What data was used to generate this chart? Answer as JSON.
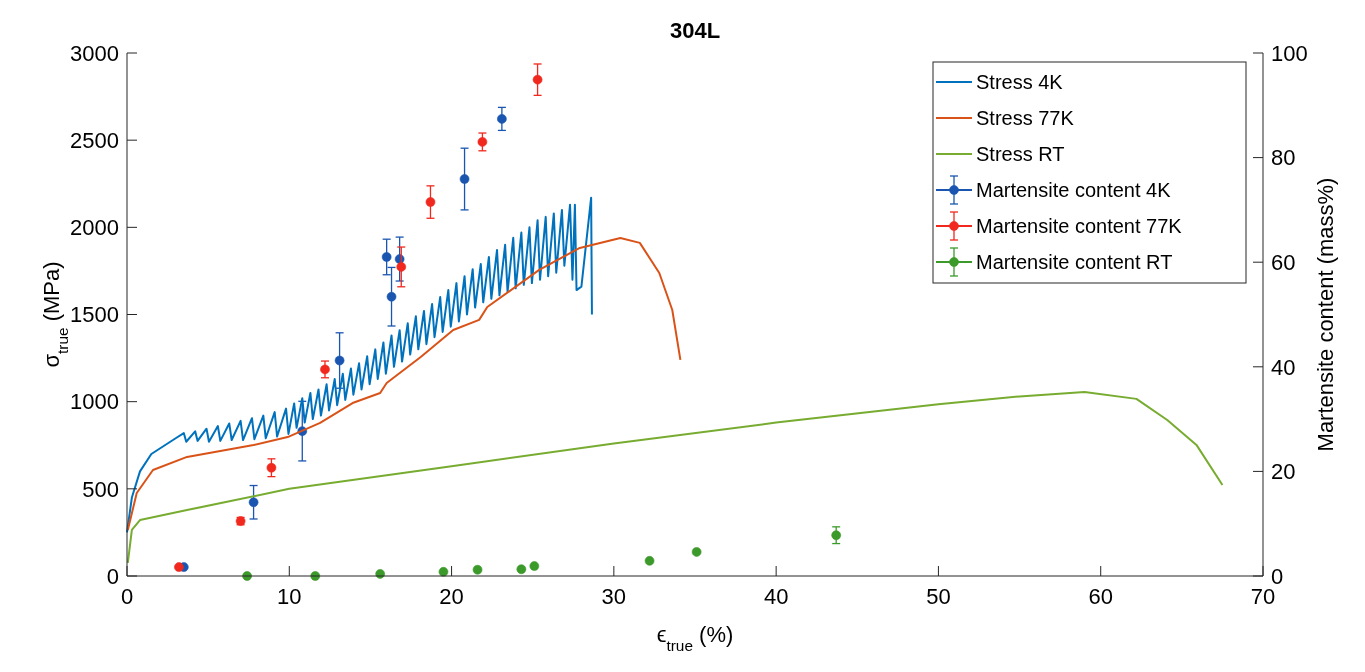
{
  "chart_data": {
    "type": "line",
    "title": "304L",
    "xlabel": "ϵ$_{true}$ (%)",
    "ylabel": "σ$_{true}$ (MPa)",
    "y2label": "Martensite content (mass%)",
    "xlim": [
      0,
      70
    ],
    "xticks": [
      0,
      10,
      20,
      30,
      40,
      50,
      60,
      70
    ],
    "ylim": [
      0,
      3000
    ],
    "yticks": [
      0,
      500,
      1000,
      1500,
      2000,
      2500,
      3000
    ],
    "y2lim": [
      0,
      100
    ],
    "y2ticks": [
      0,
      20,
      40,
      60,
      80,
      100
    ],
    "grid": false,
    "legend": "top right",
    "series": [
      {
        "name": "Stress 4K",
        "color": "#0072bd",
        "x": [
          0,
          0.3,
          0.8,
          1.5,
          2.5,
          3.0,
          3.5,
          3.65,
          4.2,
          4.35,
          4.9,
          5.05,
          5.6,
          5.75,
          6.3,
          6.45,
          7.0,
          7.15,
          7.7,
          7.85,
          8.4,
          8.55,
          9.1,
          9.25,
          9.8,
          9.95,
          10.3,
          10.45,
          10.8,
          10.95,
          11.3,
          11.45,
          11.8,
          11.95,
          12.3,
          12.45,
          12.8,
          12.95,
          13.3,
          13.45,
          13.8,
          13.95,
          14.3,
          14.45,
          14.8,
          14.95,
          15.3,
          15.45,
          15.8,
          15.95,
          16.3,
          16.45,
          16.8,
          16.95,
          17.3,
          17.45,
          17.8,
          17.95,
          18.3,
          18.45,
          18.8,
          18.95,
          19.3,
          19.45,
          19.8,
          19.95,
          20.3,
          20.45,
          20.8,
          20.95,
          21.3,
          21.45,
          21.8,
          21.95,
          22.3,
          22.45,
          22.8,
          22.95,
          23.3,
          23.45,
          23.8,
          23.95,
          24.3,
          24.45,
          24.8,
          24.95,
          25.3,
          25.45,
          25.8,
          25.95,
          26.3,
          26.45,
          26.8,
          26.95,
          27.3,
          27.45,
          27.6,
          27.7,
          28.0,
          28.6,
          28.65
        ],
        "values": [
          250,
          450,
          600,
          700,
          760,
          790,
          820,
          770,
          830,
          775,
          845,
          770,
          860,
          775,
          875,
          780,
          890,
          780,
          905,
          785,
          920,
          790,
          940,
          800,
          960,
          815,
          990,
          850,
          1020,
          880,
          1050,
          900,
          1070,
          920,
          1100,
          950,
          1130,
          980,
          1160,
          1010,
          1190,
          1040,
          1220,
          1070,
          1260,
          1100,
          1300,
          1130,
          1340,
          1160,
          1380,
          1200,
          1410,
          1230,
          1450,
          1270,
          1490,
          1300,
          1520,
          1330,
          1560,
          1370,
          1600,
          1400,
          1640,
          1430,
          1680,
          1460,
          1720,
          1500,
          1760,
          1540,
          1790,
          1570,
          1830,
          1590,
          1870,
          1610,
          1900,
          1630,
          1940,
          1650,
          1970,
          1670,
          2000,
          1680,
          2040,
          1700,
          2060,
          1720,
          2080,
          1740,
          2100,
          1780,
          2130,
          1700,
          2130,
          1640,
          1660,
          2170,
          1500
        ]
      },
      {
        "name": "Stress 77K",
        "color": "#d95319",
        "x": [
          0.05,
          0.6,
          1.6,
          3.7,
          7.8,
          9.9,
          11.9,
          13.9,
          15.6,
          16.0,
          18.1,
          20.1,
          21.7,
          22.2,
          25.4,
          27.9,
          30.4,
          31.6,
          32.8,
          33.6,
          34.1
        ],
        "values": [
          264,
          476,
          608,
          683,
          751,
          797,
          878,
          992,
          1050,
          1107,
          1256,
          1411,
          1469,
          1543,
          1756,
          1882,
          1939,
          1911,
          1738,
          1526,
          1240
        ]
      },
      {
        "name": "Stress RT",
        "color": "#77ac30",
        "x": [
          0.05,
          0.3,
          0.8,
          3.7,
          10,
          20,
          30,
          40,
          50,
          55,
          59,
          62.2,
          64.1,
          65.9,
          67.5
        ],
        "values": [
          75,
          264,
          321,
          378,
          500,
          630,
          760,
          880,
          985,
          1030,
          1056,
          1016,
          895,
          752,
          522
        ]
      },
      {
        "name": "Martensite content 4K",
        "type": "scatter",
        "axis": "y2",
        "marker": "circle",
        "color": "#1a56b0",
        "x": [
          3.5,
          7.8,
          10.8,
          13.1,
          16.0,
          16.3,
          16.8,
          20.8,
          23.1
        ],
        "values": [
          1.7,
          14.1,
          27.7,
          41.2,
          61.0,
          53.4,
          60.6,
          75.9,
          87.4
        ],
        "errors": [
          null,
          3.2,
          5.7,
          5.3,
          3.4,
          5.6,
          4.2,
          5.9,
          2.2
        ]
      },
      {
        "name": "Martensite content 77K",
        "type": "scatter",
        "axis": "y2",
        "marker": "circle",
        "color": "#f0281e",
        "x": [
          3.2,
          7.0,
          8.9,
          12.2,
          16.9,
          18.7,
          21.9,
          25.3
        ],
        "values": [
          1.7,
          10.5,
          20.7,
          39.5,
          59.1,
          71.5,
          83.0,
          94.9
        ],
        "errors": [
          null,
          0.7,
          1.7,
          1.6,
          3.8,
          3.1,
          1.7,
          3.0
        ]
      },
      {
        "name": "Martensite content RT",
        "type": "scatter",
        "axis": "y2",
        "marker": "circle",
        "color": "#3c9a2a",
        "x": [
          7.4,
          11.6,
          15.6,
          19.5,
          21.6,
          24.3,
          25.1,
          32.2,
          35.1,
          43.7
        ],
        "values": [
          0,
          0,
          0.4,
          0.8,
          1.2,
          1.3,
          1.9,
          2.9,
          4.6,
          7.8
        ],
        "errors": [
          null,
          null,
          null,
          null,
          null,
          null,
          null,
          null,
          null,
          1.6
        ]
      }
    ]
  }
}
